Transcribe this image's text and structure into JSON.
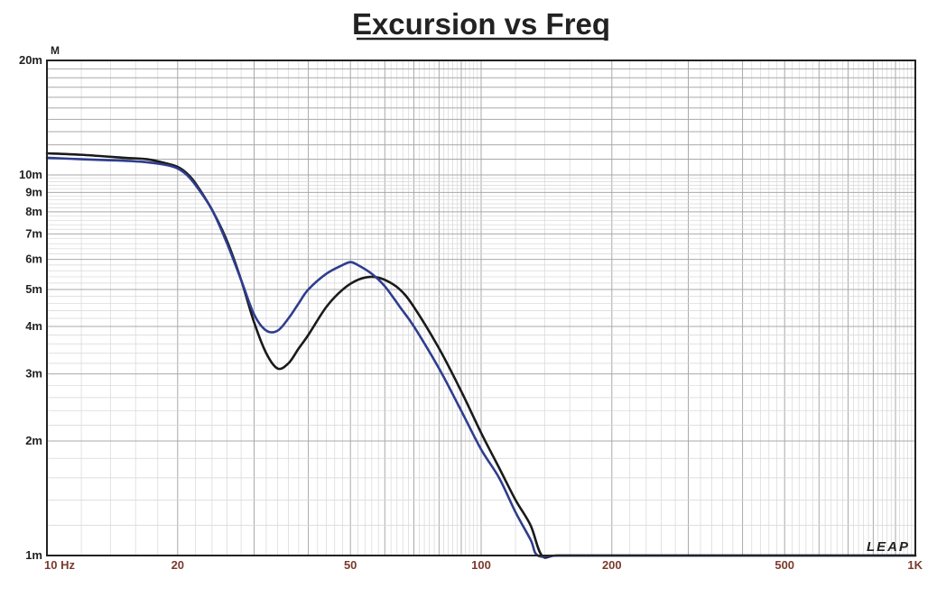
{
  "chart_data": {
    "type": "line",
    "title": "Excursion vs Freq",
    "y_unit_label": "M",
    "logo_text": "LEAP",
    "x_scale": "log",
    "y_scale": "log",
    "xlim": [
      10,
      1000
    ],
    "ylim": [
      0.001,
      0.02
    ],
    "grid": true,
    "x_ticks": [
      {
        "value": 10,
        "label": "10  Hz"
      },
      {
        "value": 20,
        "label": "20"
      },
      {
        "value": 50,
        "label": "50"
      },
      {
        "value": 100,
        "label": "100"
      },
      {
        "value": 200,
        "label": "200"
      },
      {
        "value": 500,
        "label": "500"
      },
      {
        "value": 1000,
        "label": "1K"
      }
    ],
    "y_ticks": [
      {
        "value": 0.02,
        "label": "20m"
      },
      {
        "value": 0.01,
        "label": "10m"
      },
      {
        "value": 0.009,
        "label": "9m"
      },
      {
        "value": 0.008,
        "label": "8m"
      },
      {
        "value": 0.007,
        "label": "7m"
      },
      {
        "value": 0.006,
        "label": "6m"
      },
      {
        "value": 0.005,
        "label": "5m"
      },
      {
        "value": 0.004,
        "label": "4m"
      },
      {
        "value": 0.003,
        "label": "3m"
      },
      {
        "value": 0.002,
        "label": "2m"
      },
      {
        "value": 0.001,
        "label": "1m"
      }
    ],
    "series": [
      {
        "color": "#1a1a1a",
        "x": [
          10,
          12,
          15,
          17,
          19,
          20,
          21,
          22,
          24,
          26,
          28,
          30,
          32,
          34,
          36,
          38,
          40,
          44,
          48,
          52,
          56,
          60,
          65,
          70,
          80,
          90,
          100,
          110,
          120,
          130,
          138,
          150,
          200,
          300,
          500,
          1000
        ],
        "y": [
          0.0114,
          0.0113,
          0.0111,
          0.011,
          0.0107,
          0.0105,
          0.0101,
          0.0095,
          0.0081,
          0.0067,
          0.0053,
          0.0041,
          0.0034,
          0.0031,
          0.0032,
          0.0035,
          0.0038,
          0.0045,
          0.005,
          0.0053,
          0.0054,
          0.0053,
          0.005,
          0.0045,
          0.0035,
          0.0027,
          0.0021,
          0.0017,
          0.0014,
          0.0012,
          0.001,
          0.001,
          0.001,
          0.001,
          0.001,
          0.001
        ]
      },
      {
        "color": "#2e3d8f",
        "x": [
          10,
          12,
          15,
          17,
          19,
          20,
          21,
          22,
          24,
          26,
          28,
          30,
          32,
          34,
          36,
          38,
          40,
          44,
          48,
          50,
          52,
          56,
          60,
          65,
          70,
          80,
          90,
          100,
          110,
          120,
          130,
          135,
          150,
          200,
          300,
          500,
          1000
        ],
        "y": [
          0.0111,
          0.011,
          0.0109,
          0.0108,
          0.0106,
          0.0104,
          0.01,
          0.0094,
          0.0081,
          0.0066,
          0.0053,
          0.0043,
          0.0039,
          0.0039,
          0.0042,
          0.0046,
          0.005,
          0.0055,
          0.0058,
          0.0059,
          0.0058,
          0.0055,
          0.0051,
          0.0045,
          0.004,
          0.0031,
          0.0024,
          0.0019,
          0.0016,
          0.0013,
          0.0011,
          0.001,
          0.001,
          0.001,
          0.001,
          0.001,
          0.001
        ]
      }
    ]
  }
}
